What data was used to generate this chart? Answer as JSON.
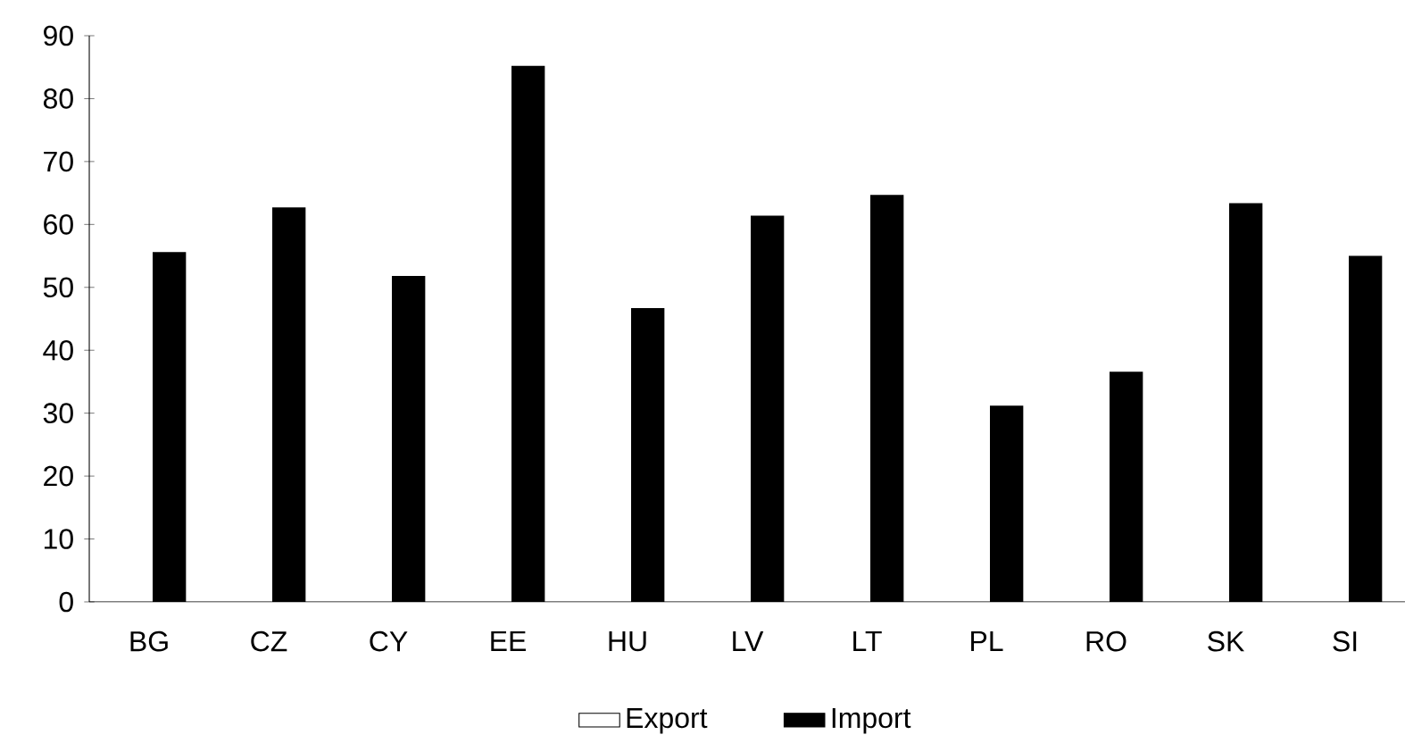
{
  "chart_data": {
    "type": "bar",
    "categories": [
      "BG",
      "CZ",
      "CY",
      "EE",
      "HU",
      "LV",
      "LT",
      "PL",
      "RO",
      "SK",
      "SI"
    ],
    "series": [
      {
        "name": "Export",
        "color": "#ffffff",
        "values": [
          null,
          null,
          null,
          null,
          null,
          null,
          null,
          null,
          null,
          null,
          null
        ]
      },
      {
        "name": "Import",
        "color": "#000000",
        "values": [
          55.6,
          62.7,
          51.8,
          85.2,
          46.7,
          61.4,
          64.7,
          31.2,
          36.6,
          63.4,
          55.0
        ]
      }
    ],
    "ylim": [
      0,
      90
    ],
    "yticks": [
      0,
      10,
      20,
      30,
      40,
      50,
      60,
      70,
      80,
      90
    ],
    "grid": false,
    "legend": "bottom"
  }
}
